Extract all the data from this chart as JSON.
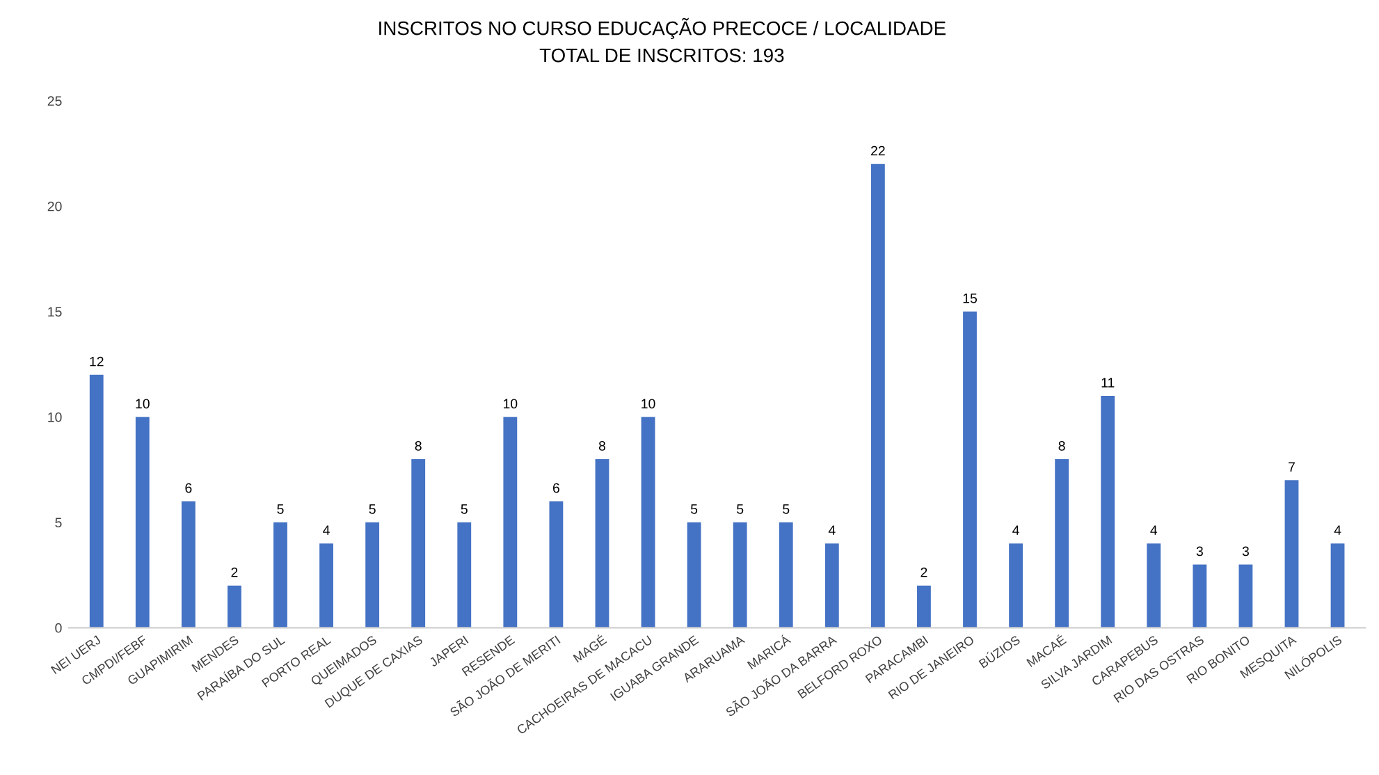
{
  "chart_data": {
    "type": "bar",
    "title": "INSCRITOS NO CURSO EDUCAÇÃO PRECOCE / LOCALIDADE",
    "subtitle": "TOTAL DE INSCRITOS: 193",
    "categories": [
      "NEI UERJ",
      "CMPDI/FEBF",
      "GUAPIMIRIM",
      "MENDES",
      "PARAÍBA DO SUL",
      "PORTO REAL",
      "QUEIMADOS",
      "DUQUE DE CAXIAS",
      "JAPERI",
      "RESENDE",
      "SÃO JOÃO DE MERITI",
      "MAGÉ",
      "CACHOEIRAS DE MACACU",
      "IGUABA GRANDE",
      "ARARUAMA",
      "MARICÁ",
      "SÃO JOÃO DA BARRA",
      "BELFORD ROXO",
      "PARACAMBI",
      "RIO DE JANEIRO",
      "BÚZIOS",
      "MACAÉ",
      "SILVA JARDIM",
      "CARAPEBUS",
      "RIO DAS OSTRAS",
      "RIO BONITO",
      "MESQUITA",
      "NILÓPOLIS"
    ],
    "values": [
      12,
      10,
      6,
      2,
      5,
      4,
      5,
      8,
      5,
      10,
      6,
      8,
      10,
      5,
      5,
      5,
      4,
      22,
      2,
      15,
      4,
      8,
      11,
      4,
      3,
      3,
      7,
      4
    ],
    "color": "#4472c4",
    "ylim": [
      0,
      25
    ],
    "yticks": [
      0,
      5,
      10,
      15,
      20,
      25
    ],
    "data_labels": true,
    "grid": false
  }
}
